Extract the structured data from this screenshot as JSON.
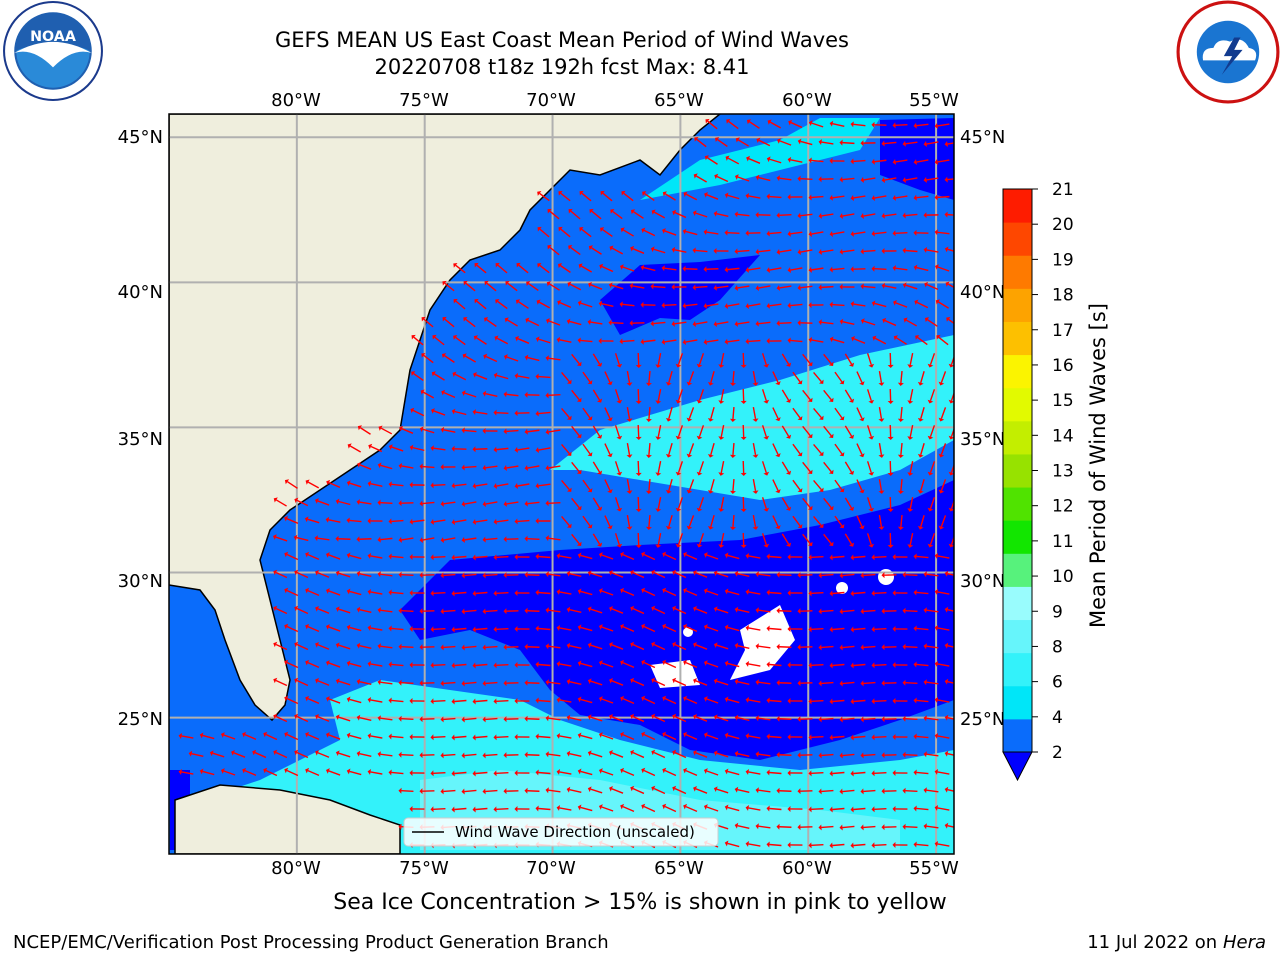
{
  "title": {
    "line1": "GEFS MEAN US East Coast Mean Period of Wind Waves",
    "line2": "20220708 t18z 192h fcst   Max: 8.41"
  },
  "map": {
    "lon_labels": [
      "80°W",
      "75°W",
      "70°W",
      "65°W",
      "60°W",
      "55°W"
    ],
    "lat_labels": [
      "45°N",
      "40°N",
      "35°N",
      "30°N",
      "25°N"
    ],
    "lon_values": [
      -80,
      -75,
      -70,
      -65,
      -60,
      -55
    ],
    "lat_values": [
      45,
      40,
      35,
      30,
      25
    ],
    "extent": {
      "lon_min": -85,
      "lon_max": -54.3,
      "lat_min": 20.3,
      "lat_max": 45.8
    },
    "legend_text": "Wind Wave Direction (unscaled)",
    "colors": {
      "land": "#efeedd",
      "grid": "#b0b0b0",
      "arrow": "#ff0000",
      "coast": "#000000"
    }
  },
  "colorbar": {
    "label": "Mean Period of Wind Waves [s]",
    "ticks": [
      "2",
      "4",
      "6",
      "8",
      "9",
      "10",
      "11",
      "12",
      "13",
      "14",
      "15",
      "16",
      "17",
      "18",
      "19",
      "20",
      "21"
    ],
    "colors": [
      "#0a6cfb",
      "#00e6f8",
      "#33f2fa",
      "#66f5fb",
      "#99fcfd",
      "#57f27c",
      "#12e600",
      "#50e300",
      "#97e200",
      "#c3ee00",
      "#e2fa00",
      "#fbf400",
      "#fdc000",
      "#fda300",
      "#fe7a00",
      "#fe4700",
      "#fe1c00"
    ],
    "under_color": "#0000ff"
  },
  "caption": "Sea Ice Concentration > 15% is shown in pink to yellow",
  "footer": {
    "left": "NCEP/EMC/Verification Post Processing Product Generation Branch",
    "date": "11 Jul 2022 on",
    "machine": "Hera"
  },
  "logos": {
    "left": "noaa-logo",
    "right": "national-weather-service-logo"
  }
}
